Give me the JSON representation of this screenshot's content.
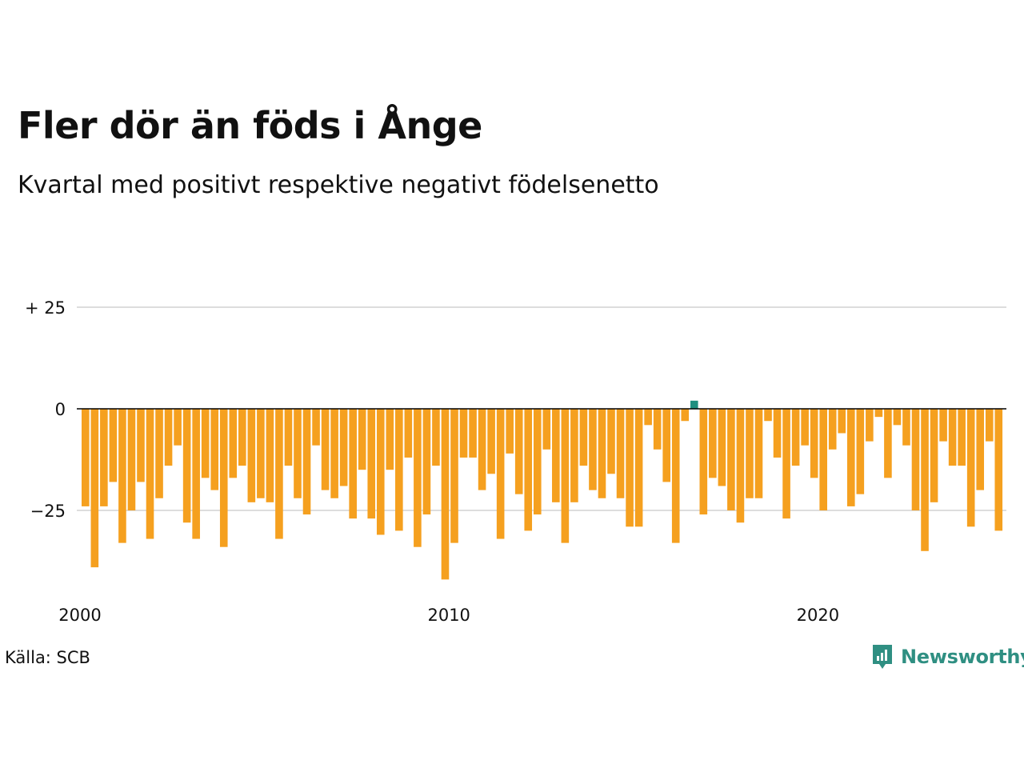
{
  "header": {
    "title": "Fler dör än föds i Ånge",
    "subtitle": "Kvartal med positivt respektive negativt födelsenetto"
  },
  "footer": {
    "source": "Källa: SCB",
    "brand": "Newsworthy"
  },
  "colors": {
    "negative": "#f5a01f",
    "positive": "#1f8f80",
    "brand": "#2f8f82",
    "grid": "#dddddd",
    "zero_line": "#000000"
  },
  "icons": {
    "brand_logo": "bar-chart-badge-icon"
  },
  "chart_data": {
    "type": "bar",
    "title": "Fler dör än föds i Ånge",
    "subtitle": "Kvartal med positivt respektive negativt födelsenetto",
    "x_start": "2000 Q1",
    "x_step": "quarter",
    "x_ticks": [
      "2000",
      "2010",
      "2020"
    ],
    "y_ticks": [
      25,
      0,
      -25
    ],
    "y_tick_labels": [
      "+ 25",
      "0",
      "−25"
    ],
    "ylim": [
      -42,
      35
    ],
    "grid": true,
    "series": [
      {
        "values": [
          -24,
          -39,
          -24,
          -18,
          -33,
          -25,
          -18,
          -32,
          -22,
          -14,
          -9,
          -28,
          -32,
          -17,
          -20,
          -34,
          -17,
          -14,
          -23,
          -22,
          -23,
          -32,
          -14,
          -22,
          -26,
          -9,
          -20,
          -22,
          -19,
          -27,
          -15,
          -27,
          -31,
          -15,
          -30,
          -12,
          -34,
          -26,
          -14,
          -42,
          -33,
          -12,
          -12,
          -20,
          -16,
          -32,
          -11,
          -21,
          -30,
          -26,
          -10,
          -23,
          -33,
          -23,
          -14,
          -20,
          -22,
          -16,
          -22,
          -29,
          -29,
          -4,
          -10,
          -18,
          -33,
          -3,
          2,
          -26,
          -17,
          -19,
          -25,
          -28,
          -22,
          -22,
          -3,
          -12,
          -27,
          -14,
          -9,
          -17,
          -25,
          -10,
          -6,
          -24,
          -21,
          -8,
          -2,
          -17,
          -4,
          -9,
          -25,
          -35,
          -23,
          -8,
          -14,
          -14,
          -29,
          -20,
          -8,
          -30
        ]
      }
    ]
  }
}
